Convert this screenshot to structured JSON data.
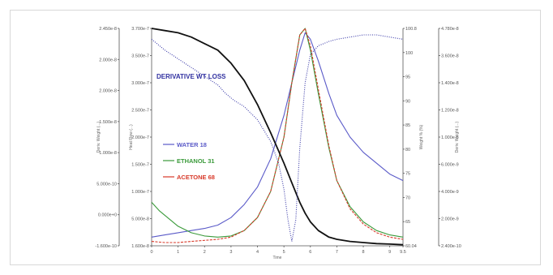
{
  "chart_data": {
    "type": "line",
    "xlabel": "Time",
    "xlim": [
      0,
      9.5
    ],
    "x_ticks": [
      "0",
      "1",
      "2",
      "3",
      "4",
      "5",
      "6",
      "7",
      "8",
      "9",
      "9.5"
    ],
    "annotation": "DERIVATIVE WT LOSS",
    "axes": {
      "left_outer": {
        "label": "Deriv. Weight (...)",
        "ticks": [
          "2.450e-8",
          "2.000e-8",
          "2.000e-8",
          "1.500e-8",
          "1.000e-8",
          "5.000e-10",
          "0.000e+0",
          "-1.600e-10"
        ],
        "ylim": [
          -0.16,
          2.45
        ]
      },
      "left_inner": {
        "label": "Heat Flow (...)",
        "ticks": [
          "3.700e-7",
          "3.500e-7",
          "3.000e-7",
          "2.500e-7",
          "2.000e-7",
          "1.500e-7",
          "1.000e-7",
          "5.000e-8",
          "1.600e-8"
        ],
        "ylim": [
          0.016,
          0.37
        ]
      },
      "right_inner": {
        "label": "Weight % (%)",
        "ticks": [
          "100.8",
          "100",
          "95",
          "90",
          "85",
          "80",
          "75",
          "70",
          "65",
          "60.04"
        ]
      },
      "right_outer": {
        "label": "Deriv. Weight (...)",
        "ticks": [
          "4.780e-8",
          "3.600e-8",
          "1.400e-8",
          "1.200e-8",
          "1.000e-8",
          "6.000e-9",
          "4.000e-9",
          "2.000e-9",
          "2.400e-10"
        ]
      }
    },
    "series": [
      {
        "name": "WATER 18",
        "color": "#5a5ac8",
        "dash": "solid",
        "x": [
          0,
          0.5,
          1,
          1.5,
          2,
          2.5,
          3,
          3.5,
          4,
          4.5,
          5,
          5.3,
          5.6,
          5.8,
          6,
          6.3,
          6.7,
          7,
          7.5,
          8,
          8.5,
          9,
          9.5
        ],
        "y": [
          0.04,
          0.05,
          0.06,
          0.07,
          0.08,
          0.095,
          0.13,
          0.19,
          0.27,
          0.4,
          0.6,
          0.75,
          0.9,
          0.98,
          0.95,
          0.85,
          0.7,
          0.6,
          0.5,
          0.43,
          0.38,
          0.33,
          0.3
        ]
      },
      {
        "name": "ETHANOL 31",
        "color": "#3a9a3a",
        "dash": "solid",
        "x": [
          0,
          0.3,
          0.7,
          1,
          1.5,
          2,
          2.5,
          3,
          3.5,
          4,
          4.5,
          5,
          5.3,
          5.6,
          5.8,
          6,
          6.3,
          6.7,
          7,
          7.5,
          8,
          8.5,
          9,
          9.5
        ],
        "y": [
          0.2,
          0.16,
          0.12,
          0.09,
          0.06,
          0.045,
          0.04,
          0.045,
          0.07,
          0.13,
          0.25,
          0.5,
          0.75,
          0.97,
          1.0,
          0.9,
          0.7,
          0.45,
          0.3,
          0.18,
          0.11,
          0.07,
          0.05,
          0.04
        ]
      },
      {
        "name": "ACETONE 68",
        "color": "#d83a2a",
        "dash": "dashed",
        "x": [
          0,
          0.5,
          1,
          1.5,
          2,
          2.5,
          3,
          3.5,
          4,
          4.5,
          5,
          5.3,
          5.6,
          5.8,
          6,
          6.3,
          6.7,
          7,
          7.5,
          8,
          8.5,
          9,
          9.5
        ],
        "y": [
          0.02,
          0.015,
          0.015,
          0.02,
          0.025,
          0.03,
          0.04,
          0.07,
          0.13,
          0.25,
          0.5,
          0.75,
          0.97,
          1.0,
          0.92,
          0.72,
          0.46,
          0.3,
          0.17,
          0.1,
          0.06,
          0.04,
          0.03
        ]
      },
      {
        "name": "Weight %",
        "color": "#111111",
        "dash": "solid",
        "x": [
          0,
          0.5,
          1,
          1.5,
          2,
          2.5,
          3,
          3.5,
          4,
          4.5,
          5,
          5.3,
          5.6,
          5.8,
          6,
          6.3,
          6.7,
          7,
          7.5,
          8,
          8.5,
          9,
          9.5
        ],
        "y": [
          1.0,
          0.99,
          0.98,
          0.96,
          0.93,
          0.9,
          0.84,
          0.76,
          0.65,
          0.52,
          0.38,
          0.29,
          0.2,
          0.15,
          0.11,
          0.07,
          0.04,
          0.03,
          0.02,
          0.015,
          0.01,
          0.008,
          0.005
        ]
      },
      {
        "name": "Derivative Wt Loss",
        "color": "#3a3aa8",
        "dash": "dotted",
        "x": [
          0,
          0.5,
          1,
          1.5,
          2,
          2.5,
          2.8,
          3.1,
          3.5,
          4,
          4.5,
          4.8,
          5,
          5.15,
          5.3,
          5.45,
          5.6,
          5.8,
          6,
          6.3,
          6.7,
          7,
          7.5,
          8,
          8.5,
          9,
          9.5
        ],
        "y": [
          0.95,
          0.9,
          0.86,
          0.82,
          0.78,
          0.74,
          0.7,
          0.67,
          0.64,
          0.58,
          0.48,
          0.38,
          0.26,
          0.12,
          0.02,
          0.12,
          0.45,
          0.75,
          0.88,
          0.92,
          0.94,
          0.95,
          0.96,
          0.97,
          0.97,
          0.96,
          0.95
        ]
      }
    ]
  }
}
